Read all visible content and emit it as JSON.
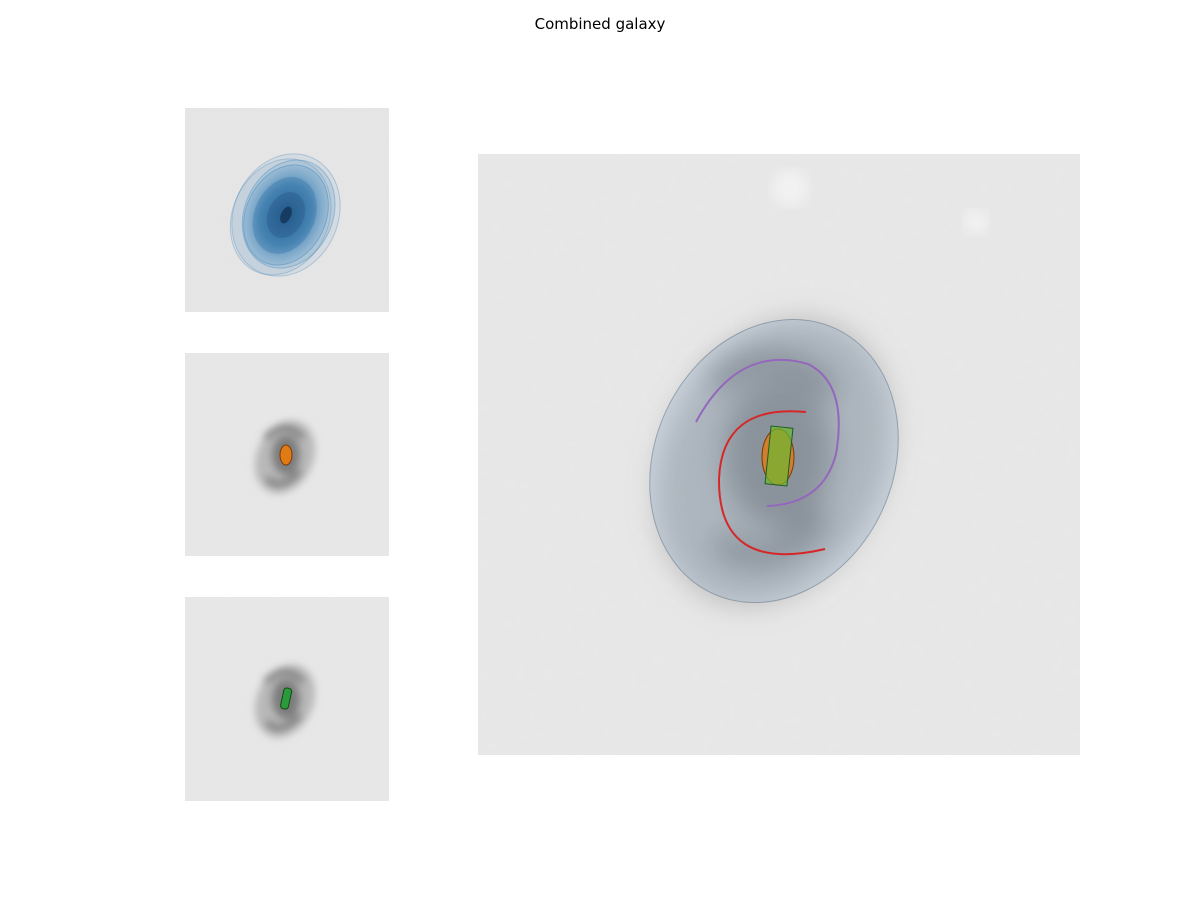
{
  "figure": {
    "title": "Combined galaxy"
  },
  "panels": {
    "disk": {
      "overlay_color": "#2f7fbf"
    },
    "bulge": {
      "overlay_color": "#e07a14"
    },
    "bar": {
      "overlay_color": "#2a9a3a"
    },
    "combined": {
      "disk_color": "#7a9ec0",
      "bulge_color": "#e07a14",
      "bar_color": "#2a9a3a",
      "arm_colors": [
        "#d62728",
        "#9467bd"
      ]
    }
  }
}
